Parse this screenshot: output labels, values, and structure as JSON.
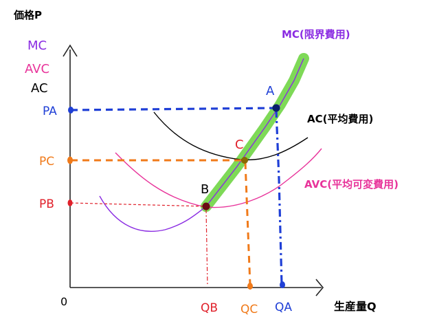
{
  "axes": {
    "y_label": "価格P",
    "x_label": "生産量Q",
    "origin": "0"
  },
  "legend": {
    "mc": "MC",
    "avc": "AVC",
    "ac": "AC"
  },
  "curves": {
    "mc": "MC(限界費用)",
    "ac": "AC(平均費用)",
    "avc": "AVC(平均可変費用)"
  },
  "points": {
    "a": "A",
    "b": "B",
    "c": "C"
  },
  "price_ticks": {
    "pa": "PA",
    "pb": "PB",
    "pc": "PC"
  },
  "quantity_ticks": {
    "qa": "QA",
    "qb": "QB",
    "qc": "QC"
  },
  "colors": {
    "mc": "#8a2be2",
    "avc": "#e8339a",
    "ac": "#000000",
    "highlight": "#7ed957",
    "blue": "#1f3fd6",
    "orange": "#f07a1a",
    "red": "#e0202a",
    "purple": "#8a2be2"
  }
}
